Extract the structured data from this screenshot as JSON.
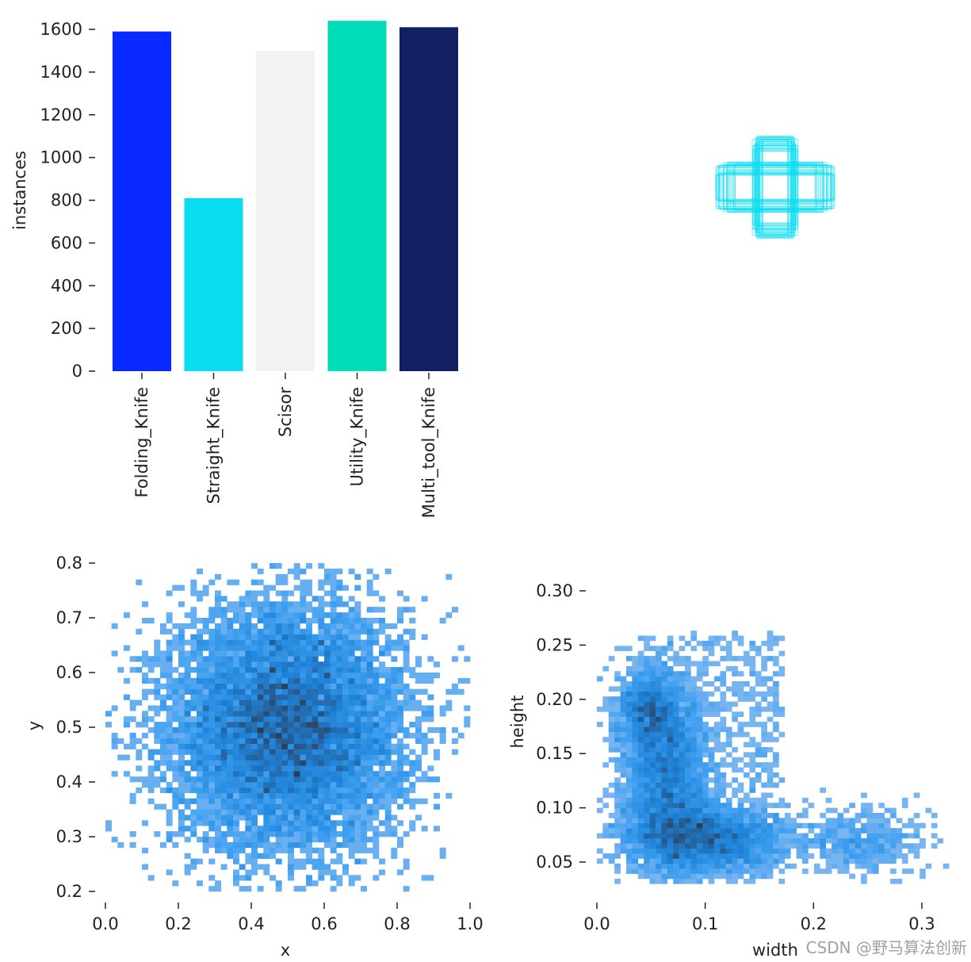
{
  "watermark": "CSDN @野马算法创新",
  "chart_data": [
    {
      "type": "bar",
      "categories": [
        "Folding_Knife",
        "Straight_Knife",
        "Scisor",
        "Utility_Knife",
        "Multi_tool_Knife"
      ],
      "values": [
        1590,
        810,
        1500,
        1640,
        1610
      ],
      "colors": [
        "#0829ff",
        "#0bdcf0",
        "#f2f2f2",
        "#00dbb8",
        "#111f63"
      ],
      "xlabel": "",
      "ylabel": "instances",
      "ylim": [
        0,
        1600
      ],
      "yticks": [
        "0",
        "200",
        "400",
        "600",
        "800",
        "1000",
        "1200",
        "1400",
        "1600"
      ],
      "grid": false
    },
    {
      "type": "scatter",
      "description_of_marks": "overlaid bounding box outlines",
      "color": "#0bdcf0"
    },
    {
      "type": "heatmap",
      "xlabel": "x",
      "ylabel": "y",
      "xlim": [
        0.0,
        1.0
      ],
      "ylim": [
        0.2,
        0.8
      ],
      "xticks": [
        "0.0",
        "0.2",
        "0.4",
        "0.6",
        "0.8",
        "1.0"
      ],
      "yticks": [
        "0.2",
        "0.3",
        "0.4",
        "0.5",
        "0.6",
        "0.7",
        "0.8"
      ],
      "distribution": {
        "center": [
          0.5,
          0.5
        ],
        "spread": [
          0.16,
          0.11
        ]
      },
      "color": "#1f8fe6"
    },
    {
      "type": "heatmap",
      "xlabel": "width",
      "ylabel": "height",
      "xlim": [
        0.0,
        0.3
      ],
      "ylim": [
        0.05,
        0.3
      ],
      "xticks": [
        "0.0",
        "0.1",
        "0.2",
        "0.3"
      ],
      "yticks": [
        "0.05",
        "0.10",
        "0.15",
        "0.20",
        "0.25",
        "0.30"
      ],
      "clusters": [
        {
          "center": [
            0.05,
            0.19
          ],
          "spread": [
            0.015,
            0.02
          ]
        },
        {
          "center": [
            0.065,
            0.14
          ],
          "spread": [
            0.02,
            0.03
          ]
        },
        {
          "center": [
            0.07,
            0.08
          ],
          "spread": [
            0.025,
            0.02
          ]
        },
        {
          "center": [
            0.115,
            0.07
          ],
          "spread": [
            0.03,
            0.015
          ]
        },
        {
          "center": [
            0.24,
            0.07
          ],
          "spread": [
            0.03,
            0.015
          ]
        }
      ],
      "color": "#1f8fe6"
    }
  ]
}
